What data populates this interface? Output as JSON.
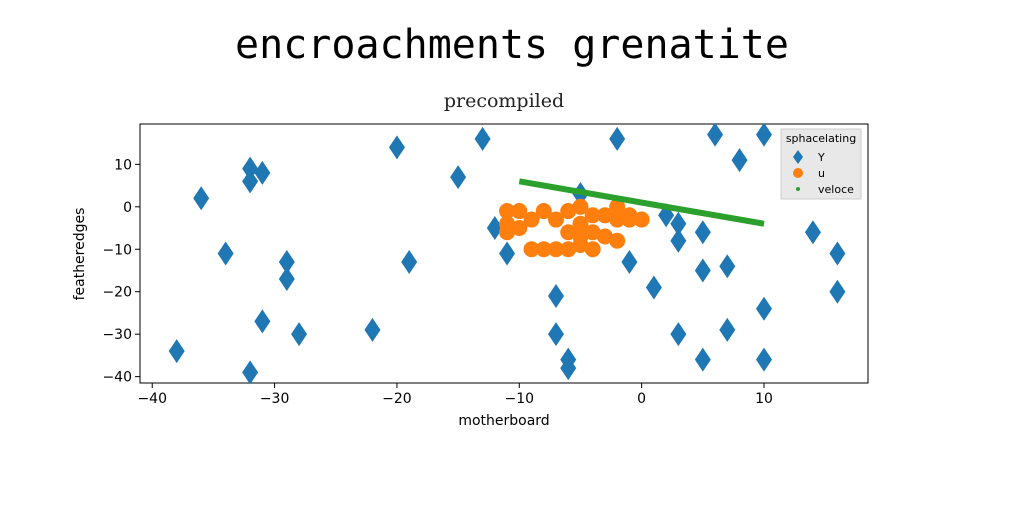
{
  "figure_title": "encroachments grenatite",
  "chart_data": {
    "type": "scatter",
    "title": "precompiled",
    "xlabel": "motherboard",
    "ylabel": "featheredges",
    "xlim": [
      -41,
      18.5
    ],
    "ylim": [
      -41.5,
      19.5
    ],
    "xticks": [
      -40,
      -30,
      -20,
      -10,
      0,
      10
    ],
    "yticks": [
      -40,
      -30,
      -20,
      -10,
      0,
      10
    ],
    "tick_labels_x": [
      "−40",
      "−30",
      "−20",
      "−10",
      "0",
      "10"
    ],
    "tick_labels_y": [
      "−40",
      "−30",
      "−20",
      "−10",
      "0",
      "10"
    ],
    "legend": {
      "title": "sphacelating",
      "placement": "top-right"
    },
    "series": [
      {
        "name": "Y",
        "marker": "diamond",
        "color": "#1f77b4",
        "points": [
          [
            -38,
            -34
          ],
          [
            -36,
            2
          ],
          [
            -34,
            -11
          ],
          [
            -32,
            9
          ],
          [
            -32,
            6
          ],
          [
            -31,
            8
          ],
          [
            -31,
            -27
          ],
          [
            -32,
            -39
          ],
          [
            -29,
            -13
          ],
          [
            -29,
            -17
          ],
          [
            -28,
            -30
          ],
          [
            -22,
            -29
          ],
          [
            -20,
            14
          ],
          [
            -19,
            -13
          ],
          [
            -15,
            7
          ],
          [
            -13,
            16
          ],
          [
            -12,
            -5
          ],
          [
            -11,
            -11
          ],
          [
            -7,
            -21
          ],
          [
            -7,
            -30
          ],
          [
            -6,
            -36
          ],
          [
            -6,
            -38
          ],
          [
            -5,
            3
          ],
          [
            -2,
            16
          ],
          [
            -1,
            -13
          ],
          [
            1,
            -19
          ],
          [
            2,
            -2
          ],
          [
            3,
            -4
          ],
          [
            3,
            -8
          ],
          [
            3,
            -30
          ],
          [
            5,
            -6
          ],
          [
            5,
            -15
          ],
          [
            5,
            -36
          ],
          [
            6,
            17
          ],
          [
            7,
            -14
          ],
          [
            7,
            -29
          ],
          [
            8,
            11
          ],
          [
            10,
            17
          ],
          [
            10,
            -24
          ],
          [
            10,
            -36
          ],
          [
            14,
            -6
          ],
          [
            16,
            -11
          ],
          [
            16,
            -20
          ]
        ]
      },
      {
        "name": "u",
        "marker": "circle",
        "color": "#ff7f0e",
        "points": [
          [
            -11,
            -1
          ],
          [
            -10,
            -1
          ],
          [
            -11,
            -4
          ],
          [
            -11,
            -6
          ],
          [
            -10,
            -5
          ],
          [
            -9,
            -3
          ],
          [
            -8,
            -1
          ],
          [
            -7,
            -3
          ],
          [
            -6,
            -1
          ],
          [
            -5,
            0
          ],
          [
            -4,
            -2
          ],
          [
            -5,
            -4
          ],
          [
            -3,
            -2
          ],
          [
            -2,
            -1
          ],
          [
            -2,
            0
          ],
          [
            -1,
            -2
          ],
          [
            -2,
            -3
          ],
          [
            -1,
            -3
          ],
          [
            0,
            -3
          ],
          [
            -9,
            -10
          ],
          [
            -8,
            -10
          ],
          [
            -7,
            -10
          ],
          [
            -6,
            -10
          ],
          [
            -5,
            -9
          ],
          [
            -4,
            -10
          ],
          [
            -6,
            -6
          ],
          [
            -5,
            -7
          ],
          [
            -4,
            -6
          ],
          [
            -3,
            -7
          ],
          [
            -2,
            -8
          ]
        ]
      },
      {
        "name": "veloce",
        "marker": "line",
        "color": "#2ca02c",
        "points": [
          [
            -10,
            6
          ],
          [
            10,
            -4
          ]
        ]
      }
    ]
  }
}
